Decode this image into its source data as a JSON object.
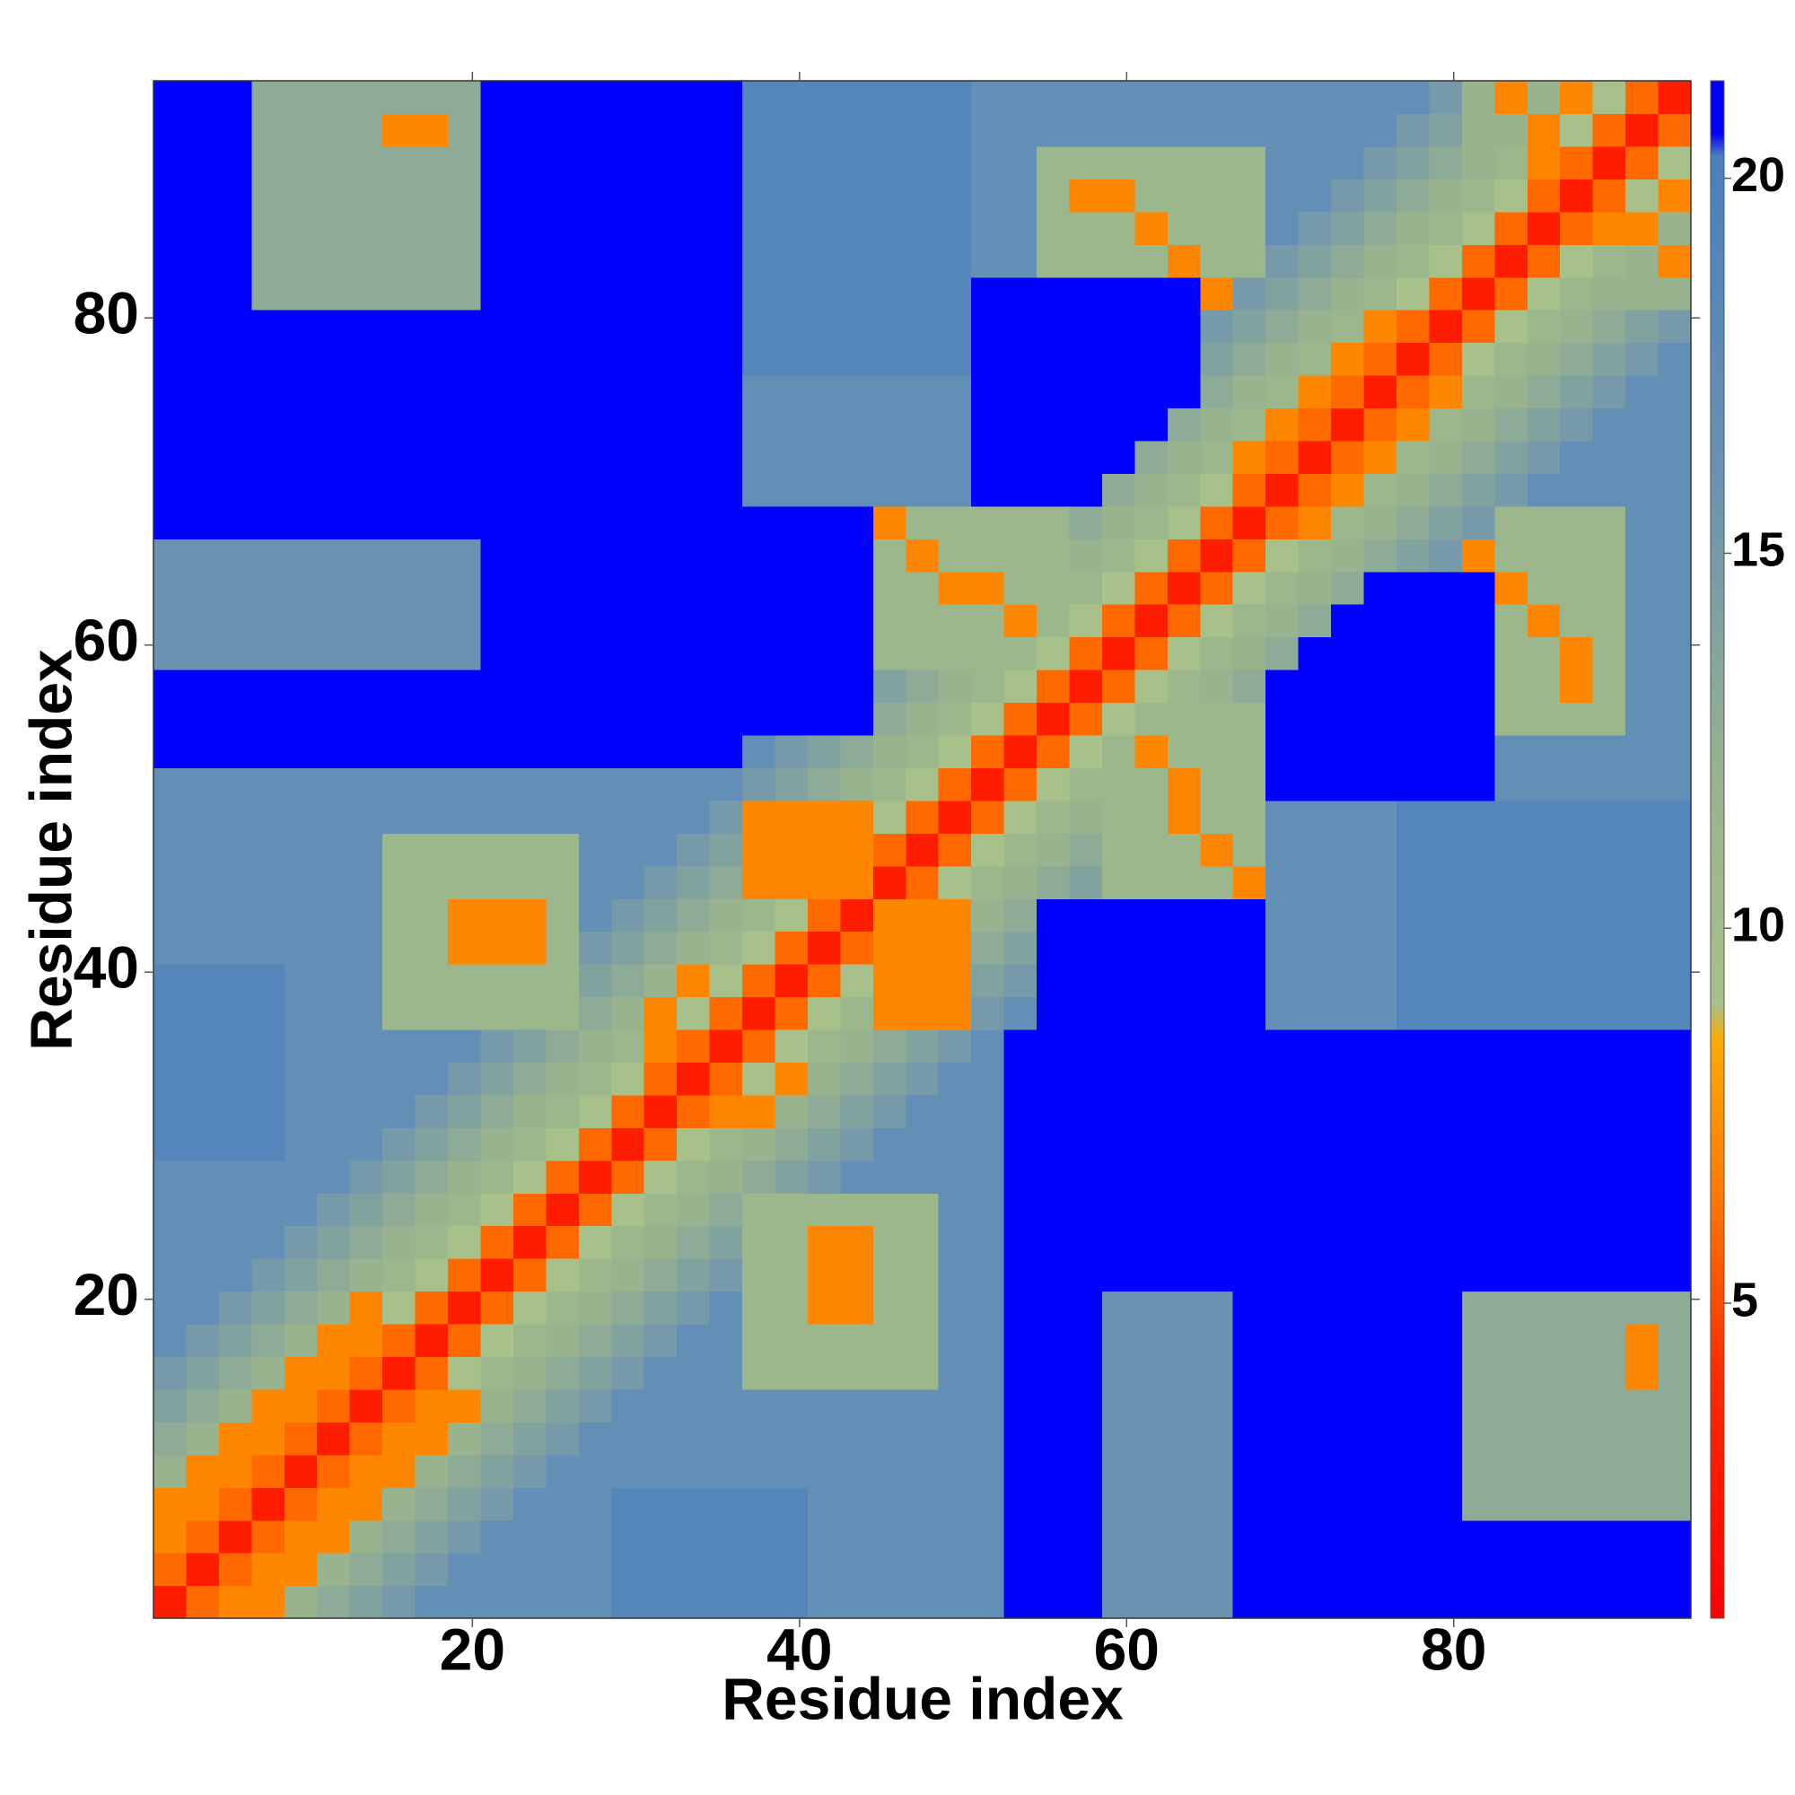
{
  "chart_data": {
    "type": "heatmap",
    "xlabel": "Residue index",
    "ylabel": "Residue index",
    "xlim": [
      0.5,
      94.5
    ],
    "ylim": [
      0.5,
      94.5
    ],
    "xticks": [
      20,
      40,
      60,
      80
    ],
    "yticks": [
      20,
      40,
      60,
      80
    ],
    "zlim": [
      0.8,
      21.3
    ],
    "zticks": [
      5,
      10,
      15,
      20
    ],
    "colorscale": [
      [
        0.8,
        "#ff0000"
      ],
      [
        4,
        "#ff2a00"
      ],
      [
        6.5,
        "#ff7a00"
      ],
      [
        8.5,
        "#ffaa00"
      ],
      [
        9,
        "#a8c08a"
      ],
      [
        12,
        "#98b38e"
      ],
      [
        16,
        "#6a92b2"
      ],
      [
        20.3,
        "#4a7fbf"
      ],
      [
        20.6,
        "#0000ff"
      ],
      [
        21.3,
        "#0000ff"
      ]
    ],
    "symmetric": true,
    "bins": [
      0.5,
      2.5,
      4.5,
      6.5,
      8.5,
      10.5,
      12.5,
      14.5,
      16.5,
      18.5,
      20.5,
      22.5,
      24.5,
      26.5,
      28.5,
      30.5,
      32.5,
      34.5,
      36.5,
      38.5,
      40.5,
      42.5,
      44.5,
      46.5,
      48.5,
      50.5,
      52.5,
      54.5,
      56.5,
      58.5,
      60.5,
      62.5,
      64.5,
      66.5,
      68.5,
      70.5,
      72.5,
      74.5,
      76.5,
      78.5,
      80.5,
      82.5,
      84.5,
      86.5,
      88.5,
      90.5,
      92.5,
      94.5
    ],
    "values": [
      [
        3,
        6,
        7,
        7,
        12,
        13,
        14,
        15,
        17,
        17,
        17,
        17,
        17,
        17,
        19,
        19,
        19,
        19,
        19,
        19,
        17,
        17,
        17,
        17,
        17,
        17,
        21,
        21,
        21,
        16,
        16,
        16,
        16,
        21,
        21,
        21,
        21,
        21,
        21,
        21,
        21,
        21,
        21,
        21,
        21,
        21,
        21
      ],
      [
        3,
        6,
        7,
        7,
        12,
        13,
        14,
        15,
        17,
        17,
        17,
        17,
        17,
        19,
        19,
        19,
        19,
        19,
        19,
        17,
        17,
        17,
        17,
        17,
        17,
        21,
        21,
        21,
        16,
        16,
        16,
        16,
        21,
        21,
        21,
        21,
        21,
        21,
        21,
        21,
        21,
        21,
        21,
        21,
        21,
        21
      ],
      [
        3,
        6,
        7,
        7,
        12,
        13,
        14,
        15,
        17,
        17,
        17,
        17,
        19,
        19,
        19,
        19,
        19,
        19,
        17,
        17,
        17,
        17,
        17,
        17,
        21,
        21,
        21,
        16,
        16,
        16,
        16,
        21,
        21,
        21,
        21,
        21,
        21,
        21,
        21,
        21,
        21,
        21,
        21,
        21,
        21
      ],
      [
        3,
        6,
        7,
        7,
        12,
        13,
        14,
        15,
        17,
        17,
        17,
        19,
        19,
        19,
        19,
        19,
        19,
        17,
        17,
        17,
        17,
        17,
        17,
        21,
        21,
        21,
        16,
        16,
        16,
        16,
        21,
        21,
        21,
        21,
        21,
        21,
        21,
        13,
        13,
        13,
        13,
        13,
        13,
        13
      ],
      [
        3,
        6,
        7,
        7,
        12,
        13,
        14,
        15,
        17,
        17,
        17,
        17,
        17,
        17,
        17,
        17,
        17,
        17,
        17,
        17,
        17,
        17,
        21,
        21,
        21,
        16,
        16,
        16,
        16,
        21,
        21,
        21,
        21,
        21,
        21,
        21,
        13,
        13,
        13,
        13,
        13,
        13,
        13
      ],
      [
        3,
        6,
        7,
        7,
        12,
        13,
        14,
        15,
        17,
        17,
        17,
        17,
        17,
        17,
        17,
        17,
        17,
        17,
        17,
        17,
        17,
        21,
        21,
        21,
        16,
        16,
        16,
        16,
        21,
        21,
        21,
        21,
        21,
        21,
        21,
        13,
        13,
        13,
        13,
        13,
        13,
        13
      ],
      [
        3,
        6,
        7,
        7,
        12,
        13,
        14,
        15,
        17,
        17,
        17,
        17,
        17,
        17,
        17,
        17,
        17,
        17,
        17,
        17,
        21,
        21,
        21,
        16,
        16,
        16,
        16,
        21,
        21,
        21,
        21,
        21,
        21,
        21,
        13,
        13,
        13,
        13,
        13,
        13,
        13
      ],
      [
        3,
        6,
        9,
        11,
        12,
        13,
        14,
        15,
        17,
        17,
        17,
        11,
        11,
        11,
        11,
        11,
        11,
        17,
        17,
        21,
        21,
        21,
        16,
        16,
        16,
        16,
        21,
        21,
        21,
        21,
        21,
        21,
        21,
        13,
        13,
        13,
        13,
        13,
        7,
        13
      ],
      [
        3,
        6,
        9,
        11,
        12,
        13,
        14,
        15,
        17,
        17,
        11,
        11,
        11,
        11,
        11,
        11,
        17,
        17,
        21,
        21,
        21,
        16,
        16,
        16,
        16,
        21,
        21,
        21,
        21,
        21,
        21,
        21,
        13,
        13,
        13,
        13,
        13,
        7,
        13
      ],
      [
        3,
        6,
        9,
        11,
        12,
        13,
        14,
        15,
        17,
        11,
        11,
        7,
        7,
        11,
        11,
        17,
        17,
        21,
        21,
        21,
        16,
        16,
        16,
        16,
        21,
        21,
        21,
        21,
        21,
        21,
        21,
        13,
        13,
        13,
        13,
        13,
        13,
        13
      ],
      [
        3,
        6,
        9,
        11,
        12,
        13,
        14,
        15,
        11,
        11,
        7,
        7,
        11,
        11,
        17,
        17,
        21,
        21,
        21,
        21,
        21,
        21,
        21,
        21,
        21,
        21,
        21,
        21,
        21,
        21,
        21,
        21,
        21,
        21,
        21,
        21,
        21
      ],
      [
        3,
        6,
        9,
        11,
        12,
        13,
        14,
        11,
        11,
        7,
        7,
        11,
        11,
        17,
        17,
        21,
        21,
        21,
        21,
        21,
        21,
        21,
        21,
        21,
        21,
        21,
        21,
        21,
        21,
        21,
        21,
        21,
        21,
        21,
        21,
        21
      ],
      [
        3,
        6,
        9,
        11,
        12,
        13,
        11,
        11,
        11,
        11,
        11,
        11,
        17,
        17,
        21,
        21,
        21,
        21,
        21,
        21,
        21,
        21,
        21,
        21,
        21,
        21,
        21,
        21,
        21,
        21,
        21,
        21,
        21,
        21,
        21
      ],
      [
        3,
        6,
        9,
        11,
        12,
        13,
        14,
        15,
        17,
        17,
        17,
        17,
        17,
        21,
        21,
        21,
        21,
        21,
        21,
        21,
        21,
        21,
        21,
        21,
        21,
        21,
        21,
        21,
        21,
        21,
        21,
        21,
        21,
        21
      ],
      [
        3,
        6,
        9,
        11,
        12,
        13,
        14,
        15,
        17,
        17,
        17,
        17,
        21,
        21,
        21,
        21,
        21,
        21,
        21,
        21,
        21,
        21,
        21,
        21,
        21,
        21,
        21,
        21,
        21,
        21,
        21,
        21,
        21
      ],
      [
        3,
        6,
        7,
        7,
        12,
        13,
        14,
        15,
        17,
        17,
        17,
        21,
        21,
        21,
        21,
        21,
        21,
        21,
        21,
        21,
        21,
        21,
        21,
        21,
        21,
        21,
        21,
        21,
        21,
        21,
        21,
        21
      ],
      [
        3,
        6,
        9,
        7,
        12,
        13,
        14,
        15,
        17,
        17,
        21,
        21,
        21,
        21,
        21,
        21,
        21,
        21,
        21,
        21,
        21,
        21,
        21,
        21,
        21,
        21,
        21,
        21,
        21,
        21,
        21
      ],
      [
        3,
        6,
        9,
        11,
        12,
        13,
        14,
        15,
        17,
        21,
        21,
        21,
        21,
        21,
        21,
        21,
        21,
        21,
        21,
        21,
        21,
        21,
        21,
        21,
        21,
        21,
        21,
        21,
        21,
        21
      ],
      [
        3,
        6,
        9,
        11,
        7,
        7,
        7,
        15,
        17,
        21,
        21,
        21,
        21,
        21,
        21,
        21,
        17,
        17,
        17,
        17,
        19,
        19,
        19,
        19,
        19,
        19,
        19,
        19,
        19
      ],
      [
        3,
        6,
        9,
        7,
        7,
        7,
        14,
        15,
        21,
        21,
        21,
        21,
        21,
        21,
        21,
        17,
        17,
        17,
        17,
        19,
        19,
        19,
        19,
        19,
        19,
        19,
        19,
        19
      ],
      [
        3,
        6,
        7,
        7,
        7,
        13,
        14,
        21,
        21,
        21,
        21,
        21,
        21,
        21,
        17,
        17,
        17,
        17,
        19,
        19,
        19,
        19,
        19,
        19,
        19,
        19,
        19
      ],
      [
        3,
        7,
        7,
        7,
        12,
        13,
        21,
        21,
        21,
        21,
        21,
        21,
        21,
        17,
        17,
        17,
        17,
        19,
        19,
        19,
        19,
        19,
        19,
        19,
        19,
        19
      ],
      [
        3,
        6,
        9,
        11,
        12,
        13,
        14,
        11,
        11,
        11,
        11,
        7,
        17,
        17,
        17,
        17,
        19,
        19,
        19,
        19,
        19,
        19,
        19,
        19,
        19
      ],
      [
        3,
        6,
        9,
        11,
        12,
        13,
        11,
        11,
        11,
        7,
        11,
        17,
        17,
        17,
        17,
        19,
        19,
        19,
        19,
        19,
        19,
        19,
        19,
        19
      ],
      [
        3,
        6,
        9,
        11,
        12,
        11,
        11,
        7,
        11,
        11,
        17,
        17,
        17,
        17,
        19,
        19,
        19,
        19,
        19,
        19,
        19,
        19,
        19
      ],
      [
        3,
        6,
        9,
        11,
        11,
        11,
        7,
        11,
        11,
        21,
        21,
        21,
        21,
        21,
        21,
        21,
        17,
        17,
        17,
        17,
        17,
        17
      ],
      [
        3,
        6,
        9,
        11,
        7,
        11,
        11,
        11,
        21,
        21,
        21,
        21,
        21,
        21,
        21,
        17,
        17,
        17,
        17,
        17,
        17
      ],
      [
        3,
        6,
        9,
        11,
        11,
        11,
        11,
        21,
        21,
        21,
        21,
        21,
        21,
        21,
        11,
        11,
        11,
        11,
        17,
        17
      ],
      [
        3,
        6,
        9,
        11,
        12,
        13,
        21,
        21,
        21,
        21,
        21,
        21,
        21,
        11,
        11,
        7,
        11,
        17,
        17
      ],
      [
        3,
        6,
        9,
        11,
        12,
        13,
        21,
        21,
        21,
        21,
        21,
        21,
        11,
        11,
        7,
        11,
        17,
        17
      ],
      [
        3,
        6,
        9,
        11,
        12,
        13,
        21,
        21,
        21,
        21,
        21,
        11,
        7,
        11,
        11,
        17,
        17
      ],
      [
        3,
        6,
        9,
        11,
        12,
        13,
        21,
        21,
        21,
        21,
        7,
        11,
        11,
        11,
        17,
        17
      ],
      [
        3,
        6,
        9,
        11,
        12,
        13,
        14,
        15,
        7,
        11,
        11,
        11,
        11,
        17,
        17
      ],
      [
        3,
        6,
        7,
        11,
        12,
        13,
        14,
        15,
        11,
        11,
        11,
        11,
        17,
        17
      ],
      [
        3,
        6,
        7,
        11,
        12,
        13,
        14,
        15,
        17,
        17,
        17,
        17,
        17
      ],
      [
        3,
        6,
        7,
        11,
        12,
        13,
        14,
        15,
        17,
        17,
        17,
        17
      ],
      [
        3,
        6,
        7,
        11,
        12,
        13,
        14,
        15,
        17,
        17,
        17
      ],
      [
        3,
        6,
        7,
        11,
        12,
        13,
        14,
        15,
        17,
        17
      ],
      [
        3,
        6,
        9,
        11,
        12,
        13,
        14,
        15,
        17
      ],
      [
        3,
        6,
        9,
        11,
        12,
        13,
        14,
        15
      ],
      [
        3,
        6,
        9,
        11,
        12,
        12,
        12
      ],
      [
        3,
        6,
        9,
        11,
        12,
        7
      ],
      [
        3,
        6,
        7,
        7,
        12
      ],
      [
        3,
        6,
        9,
        7
      ],
      [
        3,
        6,
        9
      ],
      [
        3,
        6
      ],
      [
        3
      ]
    ]
  }
}
